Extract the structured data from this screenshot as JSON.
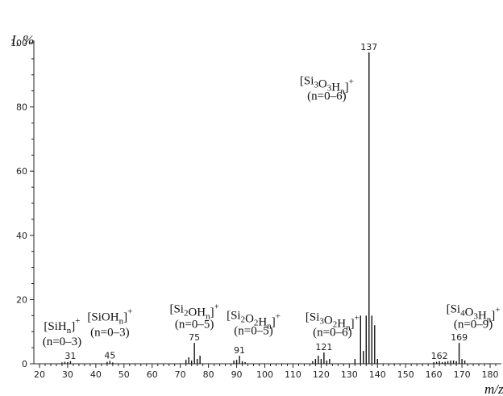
{
  "chart_data": {
    "type": "bar",
    "ylabel": "I, %",
    "xlabel": "m/z",
    "xlim": [
      18,
      184
    ],
    "ylim": [
      0,
      100
    ],
    "x_ticks": [
      20,
      30,
      40,
      50,
      60,
      70,
      80,
      90,
      100,
      110,
      120,
      130,
      140,
      150,
      160,
      170,
      180
    ],
    "y_ticks": [
      0,
      20,
      40,
      60,
      80,
      100
    ],
    "grid": false,
    "peaks": [
      {
        "mz": 28,
        "i": 0.4
      },
      {
        "mz": 29,
        "i": 0.6
      },
      {
        "mz": 30,
        "i": 0.5
      },
      {
        "mz": 31,
        "i": 0.8
      },
      {
        "mz": 44,
        "i": 0.6
      },
      {
        "mz": 45,
        "i": 0.9
      },
      {
        "mz": 46,
        "i": 0.4
      },
      {
        "mz": 72,
        "i": 1.2
      },
      {
        "mz": 73,
        "i": 2.0
      },
      {
        "mz": 74,
        "i": 1.0
      },
      {
        "mz": 75,
        "i": 6.5
      },
      {
        "mz": 76,
        "i": 1.5
      },
      {
        "mz": 77,
        "i": 2.5
      },
      {
        "mz": 89,
        "i": 1.0
      },
      {
        "mz": 90,
        "i": 1.2
      },
      {
        "mz": 91,
        "i": 2.5
      },
      {
        "mz": 92,
        "i": 0.8
      },
      {
        "mz": 93,
        "i": 0.5
      },
      {
        "mz": 117,
        "i": 0.8
      },
      {
        "mz": 118,
        "i": 1.5
      },
      {
        "mz": 119,
        "i": 2.5
      },
      {
        "mz": 120,
        "i": 1.5
      },
      {
        "mz": 121,
        "i": 3.5
      },
      {
        "mz": 122,
        "i": 1.0
      },
      {
        "mz": 123,
        "i": 1.5
      },
      {
        "mz": 132,
        "i": 1.5
      },
      {
        "mz": 134,
        "i": 15
      },
      {
        "mz": 135,
        "i": 4
      },
      {
        "mz": 136,
        "i": 15
      },
      {
        "mz": 137,
        "i": 97
      },
      {
        "mz": 138,
        "i": 15
      },
      {
        "mz": 139,
        "i": 12
      },
      {
        "mz": 140,
        "i": 1.5
      },
      {
        "mz": 160,
        "i": 0.5
      },
      {
        "mz": 161,
        "i": 0.6
      },
      {
        "mz": 162,
        "i": 0.8
      },
      {
        "mz": 163,
        "i": 0.5
      },
      {
        "mz": 164,
        "i": 0.6
      },
      {
        "mz": 165,
        "i": 0.8
      },
      {
        "mz": 166,
        "i": 1.0
      },
      {
        "mz": 167,
        "i": 1.0
      },
      {
        "mz": 168,
        "i": 0.8
      },
      {
        "mz": 169,
        "i": 6.5
      },
      {
        "mz": 170,
        "i": 1.5
      },
      {
        "mz": 171,
        "i": 1.0
      }
    ],
    "peak_labels": [
      {
        "mz": 31,
        "text": "31",
        "i": 0.8
      },
      {
        "mz": 45,
        "text": "45",
        "i": 0.9
      },
      {
        "mz": 75,
        "text": "75",
        "i": 6.5
      },
      {
        "mz": 91,
        "text": "91",
        "i": 2.5
      },
      {
        "mz": 121,
        "text": "121",
        "i": 3.5
      },
      {
        "mz": 137,
        "text": "137",
        "i": 97
      },
      {
        "mz": 162,
        "text": "162",
        "i": 0.8
      },
      {
        "mz": 169,
        "text": "169",
        "i": 6.5
      }
    ],
    "annotations": [
      {
        "ion": "SiH",
        "sub": "n",
        "range": "(n=0–3)",
        "mz": 28,
        "i": 10.5
      },
      {
        "ion": "SiOH",
        "sub": "n",
        "range": "(n=0–3)",
        "mz": 45,
        "i": 13.5
      },
      {
        "ion": "Si2OH",
        "sub": "n",
        "range": "(n=0–5)",
        "mz": 75,
        "i": 16
      },
      {
        "ion": "Si2O2H",
        "sub": "n",
        "range": "(n=0–5)",
        "mz": 96,
        "i": 14
      },
      {
        "ion": "Si3O2H",
        "sub": "n",
        "range": "(n=0–6)",
        "mz": 124,
        "i": 13.5
      },
      {
        "ion": "Si3O3H",
        "sub": "n",
        "range": "(n=0–6)",
        "mz": 122,
        "i": 87
      },
      {
        "ion": "Si4O3H",
        "sub": "n",
        "range": "(n=0–9)",
        "mz": 174,
        "i": 16
      }
    ]
  }
}
